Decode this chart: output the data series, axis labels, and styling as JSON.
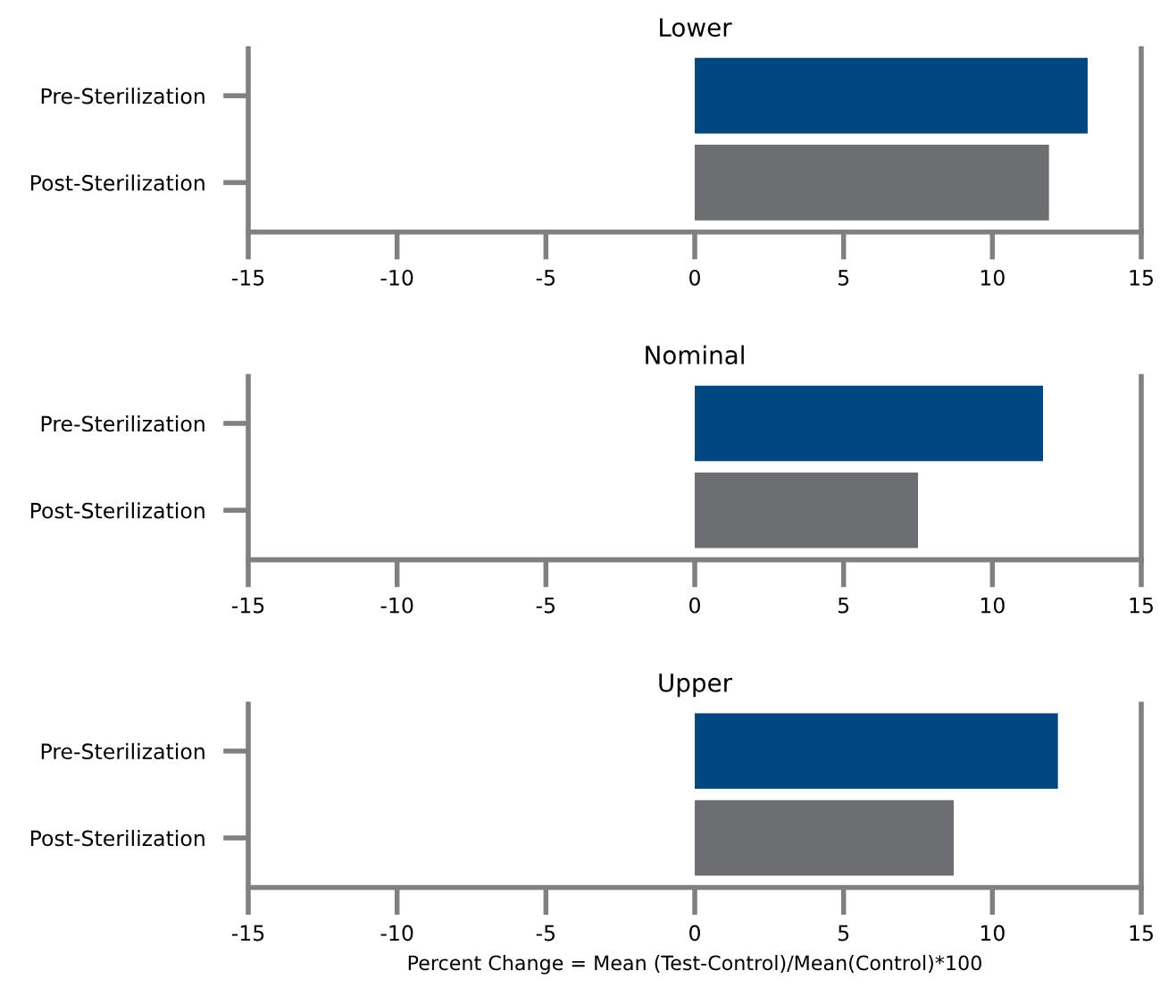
{
  "chart_data": [
    {
      "type": "bar",
      "orientation": "horizontal",
      "title": "Lower",
      "categories": [
        "Pre-Sterilization",
        "Post-Sterilization"
      ],
      "values": [
        13.2,
        11.9
      ],
      "colors": [
        "#00467f",
        "#6d6e71"
      ],
      "xlim": [
        -15,
        15
      ],
      "xticks": [
        -15,
        -10,
        -5,
        0,
        5,
        10,
        15
      ],
      "grid": false,
      "legend": false
    },
    {
      "type": "bar",
      "orientation": "horizontal",
      "title": "Nominal",
      "categories": [
        "Pre-Sterilization",
        "Post-Sterilization"
      ],
      "values": [
        11.7,
        7.5
      ],
      "colors": [
        "#00467f",
        "#6d6e71"
      ],
      "xlim": [
        -15,
        15
      ],
      "xticks": [
        -15,
        -10,
        -5,
        0,
        5,
        10,
        15
      ],
      "grid": false,
      "legend": false
    },
    {
      "type": "bar",
      "orientation": "horizontal",
      "title": "Upper",
      "xlabel": "Percent Change = Mean (Test-Control)/Mean(Control)*100",
      "categories": [
        "Pre-Sterilization",
        "Post-Sterilization"
      ],
      "values": [
        12.2,
        8.7
      ],
      "colors": [
        "#00467f",
        "#6d6e71"
      ],
      "xlim": [
        -15,
        15
      ],
      "xticks": [
        -15,
        -10,
        -5,
        0,
        5,
        10,
        15
      ],
      "grid": false,
      "legend": false
    }
  ]
}
